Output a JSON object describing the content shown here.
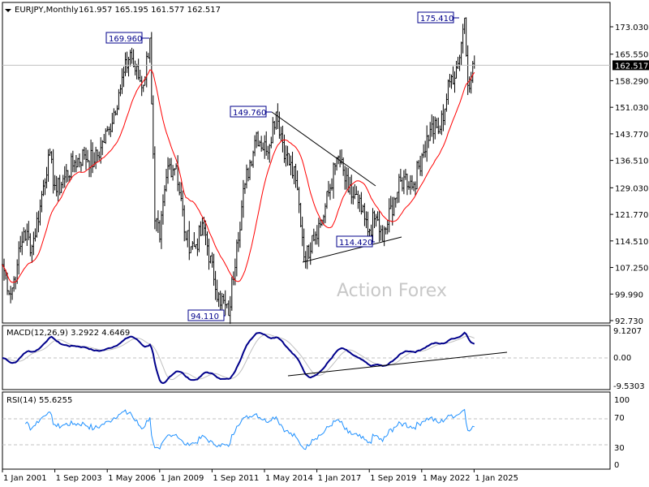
{
  "header": {
    "symbol": "EURJPY,Monthly",
    "ohlc": "161.957 165.195 161.577 162.517"
  },
  "watermark": "Action Forex",
  "chart_data": [
    {
      "type": "ohlc",
      "title": "EURJPY,Monthly",
      "last_price": "162.517",
      "price_axis_ticks": [
        "173.030",
        "165.550",
        "158.290",
        "151.030",
        "143.770",
        "136.510",
        "129.030",
        "121.770",
        "114.510",
        "107.250",
        "99.990",
        "92.730"
      ],
      "x_tick_labels": [
        "1 Jan 2001",
        "1 Sep 2003",
        "1 May 2006",
        "1 Jan 2009",
        "1 Sep 2011",
        "1 May 2014",
        "1 Jan 2017",
        "1 Sep 2019",
        "1 May 2022",
        "1 Jan 2025"
      ],
      "ylim": [
        92.73,
        173.03
      ],
      "close_keypoints": [
        [
          "2001-01",
          108
        ],
        [
          "2001-06",
          100
        ],
        [
          "2001-10",
          108
        ],
        [
          "2002-02",
          117
        ],
        [
          "2002-07",
          113
        ],
        [
          "2002-12",
          124
        ],
        [
          "2003-05",
          138
        ],
        [
          "2003-10",
          128
        ],
        [
          "2004-03",
          132
        ],
        [
          "2004-09",
          136
        ],
        [
          "2005-03",
          138
        ],
        [
          "2005-09",
          136
        ],
        [
          "2006-01",
          140
        ],
        [
          "2006-06",
          145
        ],
        [
          "2006-12",
          155
        ],
        [
          "2007-07",
          166
        ],
        [
          "2007-10",
          161
        ],
        [
          "2008-03",
          157
        ],
        [
          "2008-07",
          169.96
        ],
        [
          "2008-10",
          120
        ],
        [
          "2009-01",
          115
        ],
        [
          "2009-06",
          135
        ],
        [
          "2009-11",
          135
        ],
        [
          "2010-05",
          115
        ],
        [
          "2010-10",
          113
        ],
        [
          "2011-04",
          118
        ],
        [
          "2011-10",
          104
        ],
        [
          "2012-01",
          100
        ],
        [
          "2012-07",
          94.11
        ],
        [
          "2012-12",
          114
        ],
        [
          "2013-05",
          130
        ],
        [
          "2013-12",
          144
        ],
        [
          "2014-06",
          139
        ],
        [
          "2014-12",
          149.76
        ],
        [
          "2015-06",
          138
        ],
        [
          "2015-12",
          131
        ],
        [
          "2016-06",
          109
        ],
        [
          "2016-10",
          116
        ],
        [
          "2017-04",
          120
        ],
        [
          "2017-12",
          135
        ],
        [
          "2018-02",
          137.5
        ],
        [
          "2018-08",
          128
        ],
        [
          "2019-02",
          125
        ],
        [
          "2019-08",
          117
        ],
        [
          "2020-01",
          121
        ],
        [
          "2020-05",
          114.42
        ],
        [
          "2020-12",
          126
        ],
        [
          "2021-06",
          132
        ],
        [
          "2021-12",
          130
        ],
        [
          "2022-05",
          138
        ],
        [
          "2022-10",
          145
        ],
        [
          "2023-04",
          145
        ],
        [
          "2023-10",
          158
        ],
        [
          "2024-03",
          163
        ],
        [
          "2024-07",
          175.41
        ],
        [
          "2024-09",
          157
        ],
        [
          "2024-12",
          163
        ],
        [
          "2025-01",
          162.517
        ]
      ],
      "annotations": [
        "169.960",
        "94.110",
        "149.760",
        "114.420",
        "175.410"
      ],
      "moving_average_color": "#ff0000",
      "bar_color": "#000000"
    },
    {
      "type": "line",
      "label": "MACD(12,26,9) 3.2922 4.6469",
      "ticks": [
        "9.1207",
        "0.00",
        "-9.5303"
      ],
      "ylim": [
        -9.5303,
        9.1207
      ],
      "macd_color": "#00008b",
      "signal_color": "#c0c0c0"
    },
    {
      "type": "line",
      "label": "RSI(14) 55.6255",
      "ticks": [
        "100",
        "70",
        "30",
        "0"
      ],
      "ylim": [
        0,
        100
      ],
      "levels": [
        70,
        30
      ],
      "color": "#1e90ff"
    }
  ]
}
